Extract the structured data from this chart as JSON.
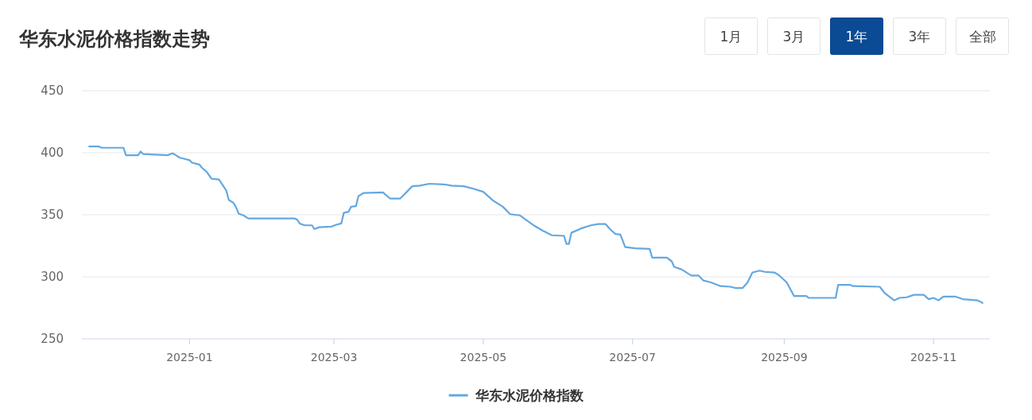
{
  "chart_data": {
    "type": "line",
    "title": "华东水泥价格指数走势",
    "annotations": [
      "1月",
      "3月",
      {
        "text": "1年"
      },
      "3年",
      "全部"
    ],
    "xlim": [
      "2024-11-18",
      "2025-11-24"
    ],
    "xticks": [
      {
        "value": "2025-01-01",
        "label": "2025-01"
      },
      {
        "value": "2025-03-01",
        "label": "2025-03"
      },
      {
        "value": "2025-05-01",
        "label": "2025-05"
      },
      {
        "value": "2025-07-01",
        "label": "2025-07"
      },
      {
        "value": "2025-09-01",
        "label": "2025-09"
      },
      {
        "value": "2025-11-01",
        "label": "2025-11"
      }
    ],
    "ylim": [
      250,
      450
    ],
    "yticks": [
      250,
      300,
      350,
      400,
      450
    ],
    "grid": "y",
    "legend": "bottom",
    "marker": "none",
    "line_style": "solid",
    "series": [
      {
        "name": "华东水泥价格指数",
        "color": "#64a8e0",
        "x": [
          "2024-11-21",
          "2024-11-25",
          "2024-11-26",
          "2024-12-05",
          "2024-12-06",
          "2024-12-11",
          "2024-12-12",
          "2024-12-13",
          "2024-12-23",
          "2024-12-25",
          "2024-12-26",
          "2024-12-28",
          "2024-12-30",
          "2025-01-01",
          "2025-01-02",
          "2025-01-05",
          "2025-01-06",
          "2025-01-08",
          "2025-01-10",
          "2025-01-13",
          "2025-01-15",
          "2025-01-16",
          "2025-01-17",
          "2025-01-19",
          "2025-01-20",
          "2025-01-21",
          "2025-01-23",
          "2025-01-25",
          "2025-02-13",
          "2025-02-14",
          "2025-02-15",
          "2025-02-17",
          "2025-02-20",
          "2025-02-21",
          "2025-02-23",
          "2025-02-28",
          "2025-03-02",
          "2025-03-04",
          "2025-03-05",
          "2025-03-07",
          "2025-03-08",
          "2025-03-10",
          "2025-03-11",
          "2025-03-13",
          "2025-03-21",
          "2025-03-24",
          "2025-03-28",
          "2025-04-02",
          "2025-04-05",
          "2025-04-09",
          "2025-04-15",
          "2025-04-18",
          "2025-04-23",
          "2025-04-27",
          "2025-05-01",
          "2025-05-05",
          "2025-05-09",
          "2025-05-12",
          "2025-05-16",
          "2025-05-22",
          "2025-05-25",
          "2025-05-29",
          "2025-06-03",
          "2025-06-04",
          "2025-06-05",
          "2025-06-06",
          "2025-06-10",
          "2025-06-14",
          "2025-06-17",
          "2025-06-20",
          "2025-06-22",
          "2025-06-24",
          "2025-06-26",
          "2025-06-28",
          "2025-07-02",
          "2025-07-08",
          "2025-07-09",
          "2025-07-15",
          "2025-07-17",
          "2025-07-18",
          "2025-07-21",
          "2025-07-25",
          "2025-07-28",
          "2025-07-30",
          "2025-08-02",
          "2025-08-06",
          "2025-08-10",
          "2025-08-12",
          "2025-08-15",
          "2025-08-17",
          "2025-08-19",
          "2025-08-22",
          "2025-08-24",
          "2025-08-28",
          "2025-08-30",
          "2025-09-02",
          "2025-09-05",
          "2025-09-10",
          "2025-09-11",
          "2025-09-22",
          "2025-09-23",
          "2025-09-28",
          "2025-09-29",
          "2025-10-10",
          "2025-10-12",
          "2025-10-15",
          "2025-10-16",
          "2025-10-18",
          "2025-10-21",
          "2025-10-24",
          "2025-10-28",
          "2025-10-30",
          "2025-11-01",
          "2025-11-03",
          "2025-11-05",
          "2025-11-10",
          "2025-11-13",
          "2025-11-19",
          "2025-11-21"
        ],
        "values": [
          405,
          405,
          404,
          404,
          398,
          398,
          401,
          399,
          398,
          399.5,
          398.5,
          396,
          395,
          394,
          392,
          390.5,
          388,
          384.5,
          379,
          378.5,
          372.5,
          369.5,
          362,
          359.5,
          356,
          351,
          349.5,
          347,
          347,
          346,
          343,
          341.5,
          341.5,
          338.5,
          340,
          340.5,
          342,
          343,
          351.5,
          352.5,
          356.5,
          357,
          365,
          367.5,
          368,
          363,
          363,
          373,
          373.5,
          375,
          374.5,
          373.5,
          373,
          371,
          368.5,
          361.5,
          356.5,
          350.5,
          349.5,
          341,
          337.5,
          333.5,
          333,
          326.5,
          326.5,
          335.5,
          339,
          341.5,
          342.5,
          342.5,
          338,
          334.5,
          334,
          324,
          323,
          322.5,
          315.5,
          315.5,
          312.5,
          308,
          306,
          301,
          301,
          297,
          295.5,
          292.5,
          292,
          291,
          291,
          295.5,
          303.5,
          305,
          304,
          303.5,
          301,
          295.5,
          284.5,
          284.5,
          283,
          283,
          293.5,
          293.5,
          292.5,
          292,
          287,
          282.5,
          281,
          283,
          283.5,
          285.5,
          285.5,
          282,
          283,
          281,
          284,
          284,
          282,
          281,
          279
        ]
      }
    ]
  }
}
